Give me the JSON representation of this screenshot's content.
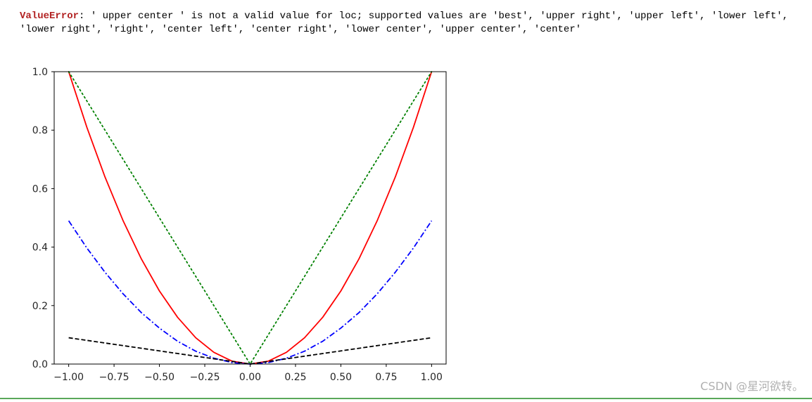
{
  "error": {
    "name": "ValueError",
    "separator": ": ",
    "message": "' upper center ' is not a valid value for loc; supported values are 'best', 'upper right', 'upper left', 'lower left', 'lower right', 'right', 'center left', 'center right', 'lower center', 'upper center', 'center'"
  },
  "watermark": "CSDN @星河欲转。",
  "chart_data": {
    "type": "line",
    "title": "",
    "xlabel": "",
    "ylabel": "",
    "xlim": [
      -1.08,
      1.08
    ],
    "ylim": [
      0.0,
      1.0
    ],
    "x_ticks": [
      -1.0,
      -0.75,
      -0.5,
      -0.25,
      0.0,
      0.25,
      0.5,
      0.75,
      1.0
    ],
    "x_tick_labels": [
      "−1.00",
      "−0.75",
      "−0.50",
      "−0.25",
      "0.00",
      "0.25",
      "0.50",
      "0.75",
      "1.00"
    ],
    "y_ticks": [
      0.0,
      0.2,
      0.4,
      0.6,
      0.8,
      1.0
    ],
    "y_tick_labels": [
      "0.0",
      "0.2",
      "0.4",
      "0.6",
      "0.8",
      "1.0"
    ],
    "grid": false,
    "legend": "none",
    "series": [
      {
        "color": "#ff0000",
        "style": "solid",
        "x": [
          -1.0,
          -0.9,
          -0.8,
          -0.7,
          -0.6,
          -0.5,
          -0.4,
          -0.3,
          -0.2,
          -0.1,
          0.0,
          0.1,
          0.2,
          0.3,
          0.4,
          0.5,
          0.6,
          0.7,
          0.8,
          0.9,
          1.0
        ],
        "y": [
          1.0,
          0.81,
          0.64,
          0.49,
          0.36,
          0.25,
          0.16,
          0.09,
          0.04,
          0.01,
          0.0,
          0.01,
          0.04,
          0.09,
          0.16,
          0.25,
          0.36,
          0.49,
          0.64,
          0.81,
          1.0
        ]
      },
      {
        "color": "#008000",
        "style": "dotted",
        "x": [
          -1.0,
          0.0,
          1.0
        ],
        "y": [
          1.0,
          0.0,
          1.0
        ]
      },
      {
        "color": "#0000ff",
        "style": "dashdot",
        "x": [
          -1.0,
          -0.9,
          -0.8,
          -0.7,
          -0.6,
          -0.5,
          -0.4,
          -0.3,
          -0.2,
          -0.1,
          0.0,
          0.1,
          0.2,
          0.3,
          0.4,
          0.5,
          0.6,
          0.7,
          0.8,
          0.9,
          1.0
        ],
        "y": [
          0.49,
          0.397,
          0.314,
          0.24,
          0.176,
          0.123,
          0.078,
          0.044,
          0.02,
          0.005,
          0.0,
          0.005,
          0.02,
          0.044,
          0.078,
          0.123,
          0.176,
          0.24,
          0.314,
          0.397,
          0.49
        ]
      },
      {
        "color": "#000000",
        "style": "dashed",
        "x": [
          -1.0,
          0.0,
          1.0
        ],
        "y": [
          0.09,
          0.0,
          0.09
        ]
      }
    ]
  }
}
